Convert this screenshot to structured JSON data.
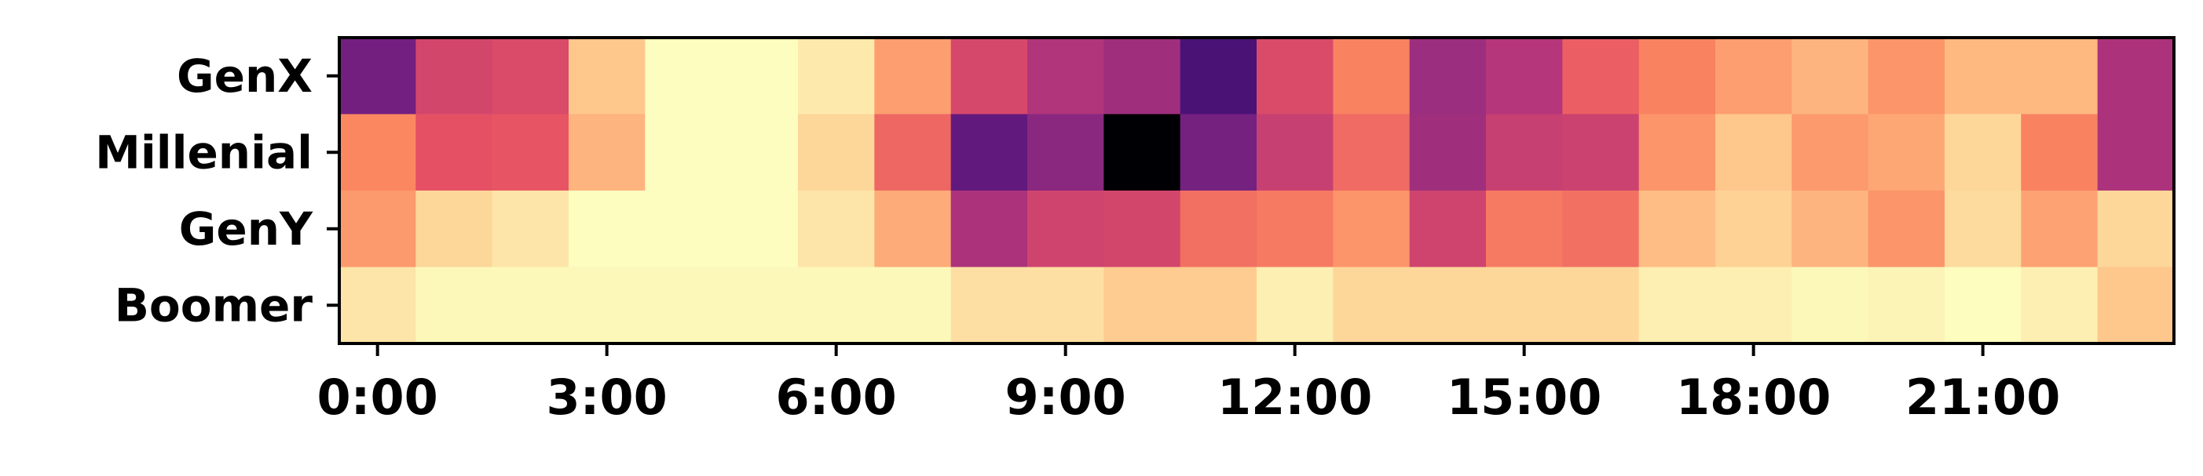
{
  "chart_data": {
    "type": "heatmap",
    "colormap": "magma",
    "rows": [
      "GenX",
      "Millenial",
      "GenY",
      "Boomer"
    ],
    "columns": [
      "0:00",
      "1:00",
      "2:00",
      "3:00",
      "4:00",
      "5:00",
      "6:00",
      "7:00",
      "8:00",
      "9:00",
      "10:00",
      "11:00",
      "12:00",
      "13:00",
      "14:00",
      "15:00",
      "16:00",
      "17:00",
      "18:00",
      "19:00",
      "20:00",
      "21:00",
      "22:00",
      "23:00"
    ],
    "xticks": [
      "0:00",
      "3:00",
      "6:00",
      "9:00",
      "12:00",
      "15:00",
      "18:00",
      "21:00"
    ],
    "values": [
      [
        0.34,
        0.58,
        0.6,
        0.89,
        1.0,
        1.0,
        0.96,
        0.8,
        0.59,
        0.49,
        0.45,
        0.24,
        0.6,
        0.74,
        0.44,
        0.5,
        0.66,
        0.74,
        0.8,
        0.85,
        0.78,
        0.86,
        0.86,
        0.48
      ],
      [
        0.75,
        0.63,
        0.64,
        0.85,
        1.0,
        1.0,
        0.92,
        0.68,
        0.3,
        0.4,
        0.0,
        0.35,
        0.55,
        0.69,
        0.45,
        0.55,
        0.56,
        0.78,
        0.89,
        0.79,
        0.82,
        0.92,
        0.74,
        0.48
      ],
      [
        0.79,
        0.92,
        0.95,
        1.0,
        1.0,
        1.0,
        0.95,
        0.83,
        0.48,
        0.57,
        0.58,
        0.7,
        0.72,
        0.78,
        0.57,
        0.72,
        0.7,
        0.87,
        0.91,
        0.85,
        0.78,
        0.93,
        0.81,
        0.92
      ],
      [
        0.95,
        0.99,
        0.99,
        0.99,
        0.99,
        0.99,
        0.99,
        0.99,
        0.94,
        0.94,
        0.9,
        0.9,
        0.97,
        0.92,
        0.92,
        0.92,
        0.92,
        0.97,
        0.97,
        0.99,
        0.98,
        1.0,
        0.97,
        0.89
      ]
    ]
  }
}
